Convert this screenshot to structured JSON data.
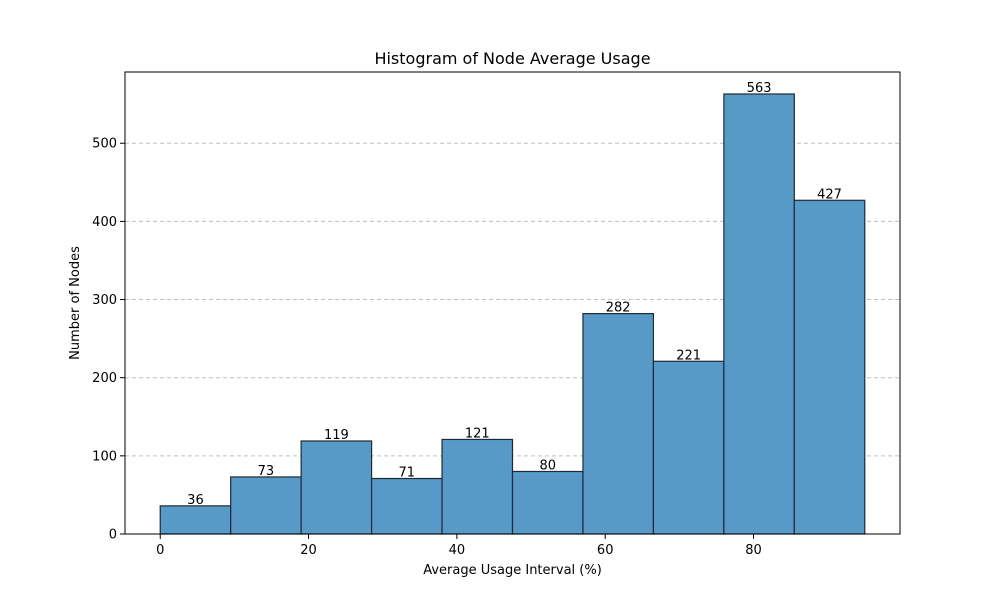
{
  "chart_data": {
    "type": "bar",
    "title": "Histogram of Node Average Usage",
    "xlabel": "Average Usage Interval (%)",
    "ylabel": "Number of Nodes",
    "bins": [
      {
        "start": 0.0,
        "end": 9.5,
        "value": 36
      },
      {
        "start": 9.5,
        "end": 19.0,
        "value": 73
      },
      {
        "start": 19.0,
        "end": 28.5,
        "value": 119
      },
      {
        "start": 28.5,
        "end": 38.0,
        "value": 71
      },
      {
        "start": 38.0,
        "end": 47.5,
        "value": 121
      },
      {
        "start": 47.5,
        "end": 57.0,
        "value": 80
      },
      {
        "start": 57.0,
        "end": 66.5,
        "value": 282
      },
      {
        "start": 66.5,
        "end": 76.0,
        "value": 221
      },
      {
        "start": 76.0,
        "end": 85.5,
        "value": 563
      },
      {
        "start": 85.5,
        "end": 95.0,
        "value": 427
      }
    ],
    "xlim": [
      -4.75,
      99.75
    ],
    "ylim": [
      0,
      591.15
    ],
    "xticks": [
      0,
      20,
      40,
      60,
      80
    ],
    "yticks": [
      0,
      100,
      200,
      300,
      400,
      500
    ],
    "grid": "y-dashed",
    "colors": {
      "bar": "#5799c7",
      "edge": "#1f2a36",
      "grid": "#c0c0c0"
    }
  }
}
